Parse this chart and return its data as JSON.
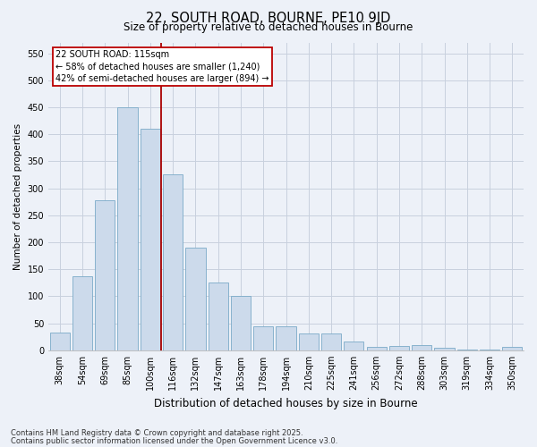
{
  "title_line1": "22, SOUTH ROAD, BOURNE, PE10 9JD",
  "title_line2": "Size of property relative to detached houses in Bourne",
  "xlabel": "Distribution of detached houses by size in Bourne",
  "ylabel": "Number of detached properties",
  "categories": [
    "38sqm",
    "54sqm",
    "69sqm",
    "85sqm",
    "100sqm",
    "116sqm",
    "132sqm",
    "147sqm",
    "163sqm",
    "178sqm",
    "194sqm",
    "210sqm",
    "225sqm",
    "241sqm",
    "256sqm",
    "272sqm",
    "288sqm",
    "303sqm",
    "319sqm",
    "334sqm",
    "350sqm"
  ],
  "values": [
    33,
    137,
    277,
    450,
    410,
    325,
    190,
    125,
    101,
    45,
    45,
    31,
    31,
    17,
    7,
    8,
    9,
    5,
    2,
    2,
    6
  ],
  "bar_color": "#ccdaeb",
  "bar_edge_color": "#7aaac8",
  "grid_color": "#c8d0de",
  "vline_x": 5,
  "vline_color": "#aa0000",
  "annotation_text": "22 SOUTH ROAD: 115sqm\n← 58% of detached houses are smaller (1,240)\n42% of semi-detached houses are larger (894) →",
  "annotation_box_color": "#ffffff",
  "annotation_box_edge_color": "#bb0000",
  "ylim": [
    0,
    570
  ],
  "yticks": [
    0,
    50,
    100,
    150,
    200,
    250,
    300,
    350,
    400,
    450,
    500,
    550
  ],
  "footnote_line1": "Contains HM Land Registry data © Crown copyright and database right 2025.",
  "footnote_line2": "Contains public sector information licensed under the Open Government Licence v3.0.",
  "background_color": "#edf1f8",
  "title_fontsize": 10.5,
  "subtitle_fontsize": 8.5,
  "ylabel_fontsize": 7.5,
  "xlabel_fontsize": 8.5,
  "tick_fontsize": 7,
  "annotation_fontsize": 7,
  "footnote_fontsize": 6
}
